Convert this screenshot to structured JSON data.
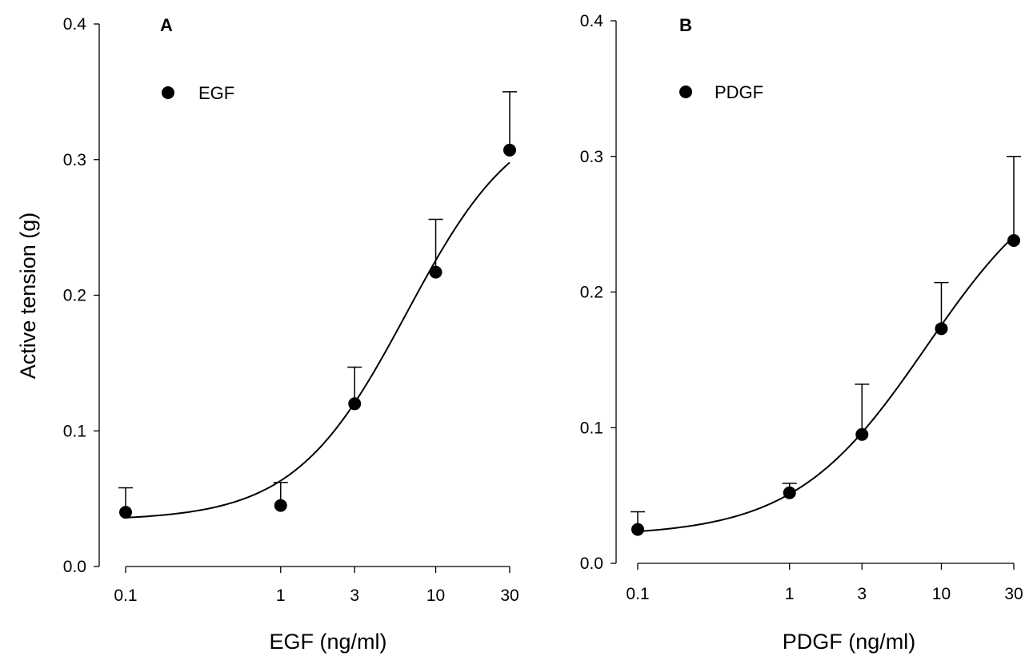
{
  "chart_data": [
    {
      "type": "scatter",
      "panel_label": "A",
      "xlabel": "EGF (ng/ml)",
      "ylabel": "Active tension (g)",
      "x_scale": "log",
      "x_ticks": [
        0.1,
        1,
        3,
        10,
        30
      ],
      "x_tick_labels": [
        "0.1",
        "1",
        "3",
        "10",
        "30"
      ],
      "ylim": [
        0.0,
        0.4
      ],
      "y_ticks": [
        0.0,
        0.1,
        0.2,
        0.3,
        0.4
      ],
      "y_tick_labels": [
        "0.0",
        "0.1",
        "0.2",
        "0.3",
        "0.4"
      ],
      "grid": false,
      "legend": {
        "position": "top-left",
        "entries": [
          "EGF"
        ]
      },
      "series": [
        {
          "name": "EGF",
          "x": [
            0.1,
            1,
            3,
            10,
            30
          ],
          "y": [
            0.04,
            0.045,
            0.12,
            0.217,
            0.307
          ],
          "error_upper": [
            0.058,
            0.062,
            0.147,
            0.256,
            0.35
          ],
          "fit_curve": {
            "bottom": 0.034,
            "top": 0.34,
            "ec50": 6.5,
            "hill": 1.2
          }
        }
      ]
    },
    {
      "type": "scatter",
      "panel_label": "B",
      "xlabel": "PDGF (ng/ml)",
      "ylabel": "",
      "x_scale": "log",
      "x_ticks": [
        0.1,
        1,
        3,
        10,
        30
      ],
      "x_tick_labels": [
        "0.1",
        "1",
        "3",
        "10",
        "30"
      ],
      "ylim": [
        0.0,
        0.4
      ],
      "y_ticks": [
        0.0,
        0.1,
        0.2,
        0.3,
        0.4
      ],
      "y_tick_labels": [
        "0.0",
        "0.1",
        "0.2",
        "0.3",
        "0.4"
      ],
      "grid": false,
      "legend": {
        "position": "top-left",
        "entries": [
          "PDGF"
        ]
      },
      "series": [
        {
          "name": "PDGF",
          "x": [
            0.1,
            1,
            3,
            10,
            30
          ],
          "y": [
            0.025,
            0.052,
            0.095,
            0.173,
            0.238
          ],
          "error_upper": [
            0.038,
            0.059,
            0.132,
            0.207,
            0.3
          ],
          "fit_curve": {
            "bottom": 0.02,
            "top": 0.3,
            "ec50": 8.0,
            "hill": 1.0
          }
        }
      ]
    }
  ]
}
